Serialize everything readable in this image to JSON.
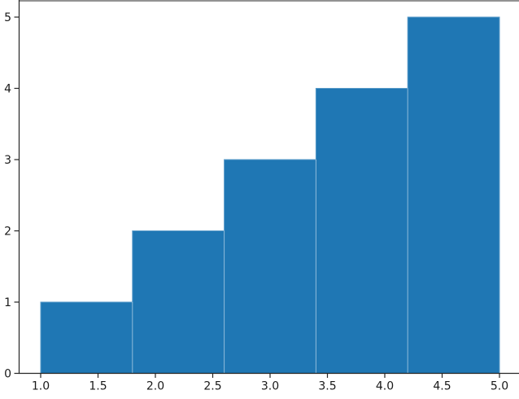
{
  "chart_data": {
    "type": "histogram",
    "title": "",
    "xlabel": "",
    "ylabel": "",
    "bin_edges": [
      1.0,
      1.8,
      2.6,
      3.4,
      4.2,
      5.0
    ],
    "counts": [
      1,
      2,
      3,
      4,
      5
    ],
    "xlim": [
      0.81,
      5.2
    ],
    "ylim": [
      0,
      5.25
    ],
    "x_ticks": [
      {
        "value": 1.0,
        "label": "1.0"
      },
      {
        "value": 1.5,
        "label": "1.5"
      },
      {
        "value": 2.0,
        "label": "2.0"
      },
      {
        "value": 2.5,
        "label": "2.5"
      },
      {
        "value": 3.0,
        "label": "3.0"
      },
      {
        "value": 3.5,
        "label": "3.5"
      },
      {
        "value": 4.0,
        "label": "4.0"
      },
      {
        "value": 4.5,
        "label": "4.5"
      },
      {
        "value": 5.0,
        "label": "5.0"
      }
    ],
    "y_ticks": [
      {
        "value": 0,
        "label": "0"
      },
      {
        "value": 1,
        "label": "1"
      },
      {
        "value": 2,
        "label": "2"
      },
      {
        "value": 3,
        "label": "3"
      },
      {
        "value": 4,
        "label": "4"
      },
      {
        "value": 5,
        "label": "5"
      }
    ],
    "grid": false,
    "legend": null,
    "colors": {
      "bar_fill": "#1f77b4",
      "bar_edge_soft": "#5a9bc9",
      "bar_seam": "rgba(255,255,255,0.5)",
      "spine": "#262626",
      "tick": "#262626",
      "tick_label": "#1a1a1a",
      "background": "#ffffff"
    }
  }
}
